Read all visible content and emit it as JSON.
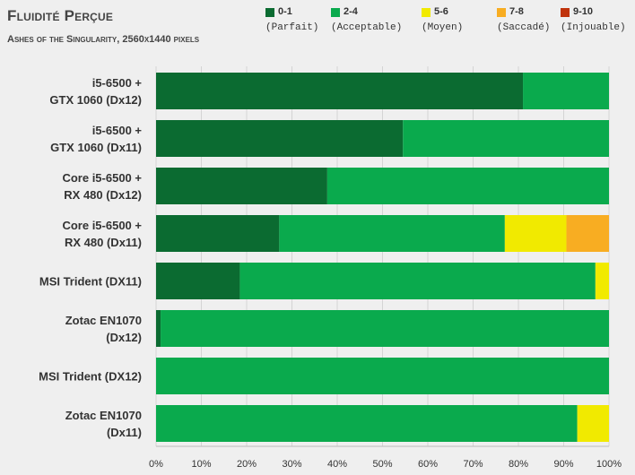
{
  "chart_data": {
    "type": "bar",
    "orientation": "horizontal",
    "stacked": true,
    "title": "Fluidité Perçue",
    "subtitle": "Ashes of the Singularity, 2560x1440 pixels",
    "xlim": [
      0,
      100
    ],
    "x_ticks": [
      "0%",
      "10%",
      "20%",
      "30%",
      "40%",
      "50%",
      "60%",
      "70%",
      "80%",
      "90%",
      "100%"
    ],
    "legend_position": "top-right",
    "categories": [
      [
        "i5-6500 +",
        "GTX 1060 (Dx12)"
      ],
      [
        "i5-6500 +",
        "GTX 1060 (Dx11)"
      ],
      [
        "Core i5-6500 +",
        "RX 480 (Dx12)"
      ],
      [
        "Core i5-6500 +",
        "RX 480 (Dx11)"
      ],
      [
        "MSI Trident (DX11)"
      ],
      [
        "Zotac EN1070",
        "(Dx12)"
      ],
      [
        "MSI Trident (DX12)"
      ],
      [
        "Zotac EN1070",
        "(Dx11)"
      ]
    ],
    "series": [
      {
        "name": "0-1",
        "sublabel": "(Parfait)",
        "color": "#0b6b31",
        "values": [
          81,
          54.5,
          37.8,
          27.2,
          18.5,
          1,
          0,
          0
        ]
      },
      {
        "name": "2-4",
        "sublabel": "(Acceptable)",
        "color": "#0aaa4d",
        "values": [
          19,
          45.5,
          62.2,
          49.8,
          78.5,
          99,
          100,
          93
        ]
      },
      {
        "name": "5-6",
        "sublabel": "(Moyen)",
        "color": "#f1ea00",
        "values": [
          0,
          0,
          0,
          13.6,
          3,
          0,
          0,
          7
        ]
      },
      {
        "name": "7-8",
        "sublabel": "(Saccadé)",
        "color": "#f8ad22",
        "values": [
          0,
          0,
          0,
          9.4,
          0,
          0,
          0,
          0
        ]
      },
      {
        "name": "9-10",
        "sublabel": "(Injouable)",
        "color": "#c0330c",
        "values": [
          0,
          0,
          0,
          0,
          0,
          0,
          0,
          0
        ]
      }
    ]
  }
}
